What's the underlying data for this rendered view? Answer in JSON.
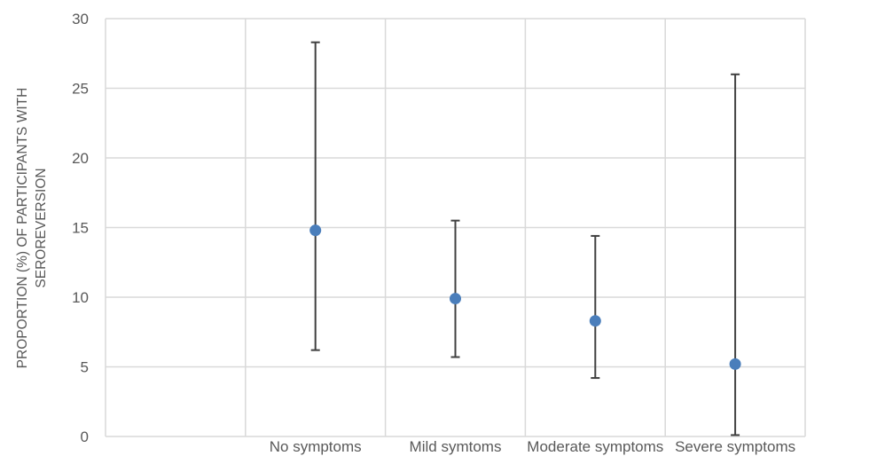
{
  "chart_data": {
    "type": "scatter",
    "title": "",
    "xlabel": "",
    "ylabel_lines": [
      "PROPORTION (%) OF PARTICIPANTS WITH",
      "SEROREVERSION"
    ],
    "ylim": [
      0,
      30
    ],
    "yticks": [
      0,
      5,
      10,
      15,
      20,
      25,
      30
    ],
    "grid": true,
    "categories": [
      "No symptoms",
      "Mild symtoms",
      "Moderate symptoms",
      "Severe symptoms"
    ],
    "values": [
      14.8,
      9.9,
      8.3,
      5.2
    ],
    "error_low": [
      6.2,
      5.7,
      4.2,
      0.1
    ],
    "error_high": [
      28.3,
      15.5,
      14.4,
      26.0
    ],
    "marker_color": "#4a7ebb",
    "errorbar_color": "#404040",
    "grid_color": "#d9d9d9"
  }
}
